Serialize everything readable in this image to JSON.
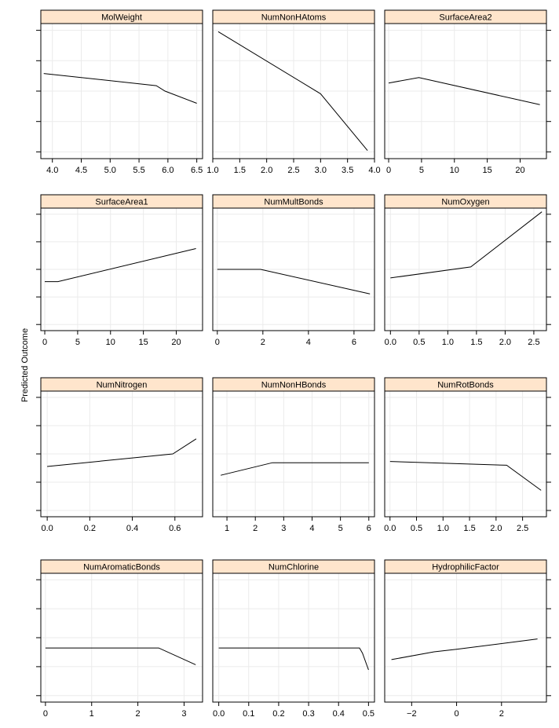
{
  "chart_data": {
    "type": "line",
    "ylabel": "Predicted Outcome",
    "grid": true,
    "colors": {
      "strip": "#ffe5cc",
      "line": "#000000",
      "grid": "#ebebeb",
      "frame": "#000000"
    },
    "panels": [
      {
        "title": "MolWeight",
        "xlim": [
          3.8,
          6.6
        ],
        "xticks": [
          4.0,
          4.5,
          5.0,
          5.5,
          6.0,
          6.5
        ],
        "xtick_labels": [
          "4.0",
          "4.5",
          "5.0",
          "5.5",
          "6.0",
          "6.5"
        ],
        "x": [
          3.85,
          5.8,
          5.95,
          6.5
        ],
        "y": [
          0.63,
          0.54,
          0.5,
          0.41
        ]
      },
      {
        "title": "NumNonHAtoms",
        "xlim": [
          1.0,
          4.0
        ],
        "xticks": [
          1.0,
          1.5,
          2.0,
          2.5,
          3.0,
          3.5,
          4.0
        ],
        "xtick_labels": [
          "1.0",
          "1.5",
          "2.0",
          "2.5",
          "3.0",
          "3.5",
          "4.0"
        ],
        "x": [
          1.1,
          3.0,
          3.87
        ],
        "y": [
          0.94,
          0.48,
          0.06
        ]
      },
      {
        "title": "SurfaceArea2",
        "xlim": [
          -0.6,
          24.0
        ],
        "xticks": [
          0,
          5,
          10,
          15,
          20
        ],
        "xtick_labels": [
          "0",
          "5",
          "10",
          "15",
          "20"
        ],
        "x": [
          0,
          4.6,
          23.0
        ],
        "y": [
          0.56,
          0.6,
          0.4
        ]
      },
      {
        "title": "SurfaceArea1",
        "xlim": [
          -0.6,
          24.0
        ],
        "xticks": [
          0,
          5,
          10,
          15,
          20
        ],
        "xtick_labels": [
          "0",
          "5",
          "10",
          "15",
          "20"
        ],
        "x": [
          0,
          2.0,
          23.0
        ],
        "y": [
          0.4,
          0.4,
          0.67
        ]
      },
      {
        "title": "NumMultBonds",
        "xlim": [
          -0.2,
          6.9
        ],
        "xticks": [
          0,
          2,
          4,
          6
        ],
        "xtick_labels": [
          "0",
          "2",
          "4",
          "6"
        ],
        "x": [
          0,
          1.9,
          6.7
        ],
        "y": [
          0.5,
          0.5,
          0.3
        ]
      },
      {
        "title": "NumOxygen",
        "xlim": [
          -0.1,
          2.72
        ],
        "xticks": [
          0.0,
          0.5,
          1.0,
          1.5,
          2.0,
          2.5
        ],
        "xtick_labels": [
          "0.0",
          "0.5",
          "1.0",
          "1.5",
          "2.0",
          "2.5"
        ],
        "x": [
          0,
          1.4,
          2.64
        ],
        "y": [
          0.43,
          0.52,
          0.97
        ]
      },
      {
        "title": "NumNitrogen",
        "xlim": [
          -0.03,
          0.73
        ],
        "xticks": [
          0.0,
          0.2,
          0.4,
          0.6
        ],
        "xtick_labels": [
          "0.0",
          "0.2",
          "0.4",
          "0.6"
        ],
        "x": [
          0,
          0.59,
          0.7
        ],
        "y": [
          0.4,
          0.5,
          0.62
        ]
      },
      {
        "title": "NumNonHBonds",
        "xlim": [
          0.5,
          6.2
        ],
        "xticks": [
          1,
          2,
          3,
          4,
          5,
          6
        ],
        "xtick_labels": [
          "1",
          "2",
          "3",
          "4",
          "5",
          "6"
        ],
        "x": [
          0.78,
          2.6,
          6.0
        ],
        "y": [
          0.33,
          0.43,
          0.43
        ]
      },
      {
        "title": "NumRotBonds",
        "xlim": [
          -0.1,
          2.95
        ],
        "xticks": [
          0.0,
          0.5,
          1.0,
          1.5,
          2.0,
          2.5
        ],
        "xtick_labels": [
          "0.0",
          "0.5",
          "1.0",
          "1.5",
          "2.0",
          "2.5"
        ],
        "x": [
          0,
          2.2,
          2.85
        ],
        "y": [
          0.44,
          0.41,
          0.21
        ]
      },
      {
        "title": "NumAromaticBonds",
        "xlim": [
          -0.1,
          3.4
        ],
        "xticks": [
          0,
          1,
          2,
          3
        ],
        "xtick_labels": [
          "0",
          "1",
          "2",
          "3"
        ],
        "x": [
          0,
          2.45,
          3.25
        ],
        "y": [
          0.42,
          0.42,
          0.29
        ]
      },
      {
        "title": "NumChlorine",
        "xlim": [
          -0.02,
          0.52
        ],
        "xticks": [
          0.0,
          0.1,
          0.2,
          0.3,
          0.4,
          0.5
        ],
        "xtick_labels": [
          "0.0",
          "0.1",
          "0.2",
          "0.3",
          "0.4",
          "0.5"
        ],
        "x": [
          0,
          0.47,
          0.48,
          0.5
        ],
        "y": [
          0.42,
          0.42,
          0.38,
          0.25
        ]
      },
      {
        "title": "HydrophilicFactor",
        "xlim": [
          -3.2,
          4.0
        ],
        "xticks": [
          -2,
          0,
          2
        ],
        "xtick_labels": [
          "−2",
          "0",
          "2"
        ],
        "x": [
          -2.9,
          -1.0,
          0,
          3.6
        ],
        "y": [
          0.33,
          0.39,
          0.41,
          0.49
        ]
      }
    ]
  }
}
